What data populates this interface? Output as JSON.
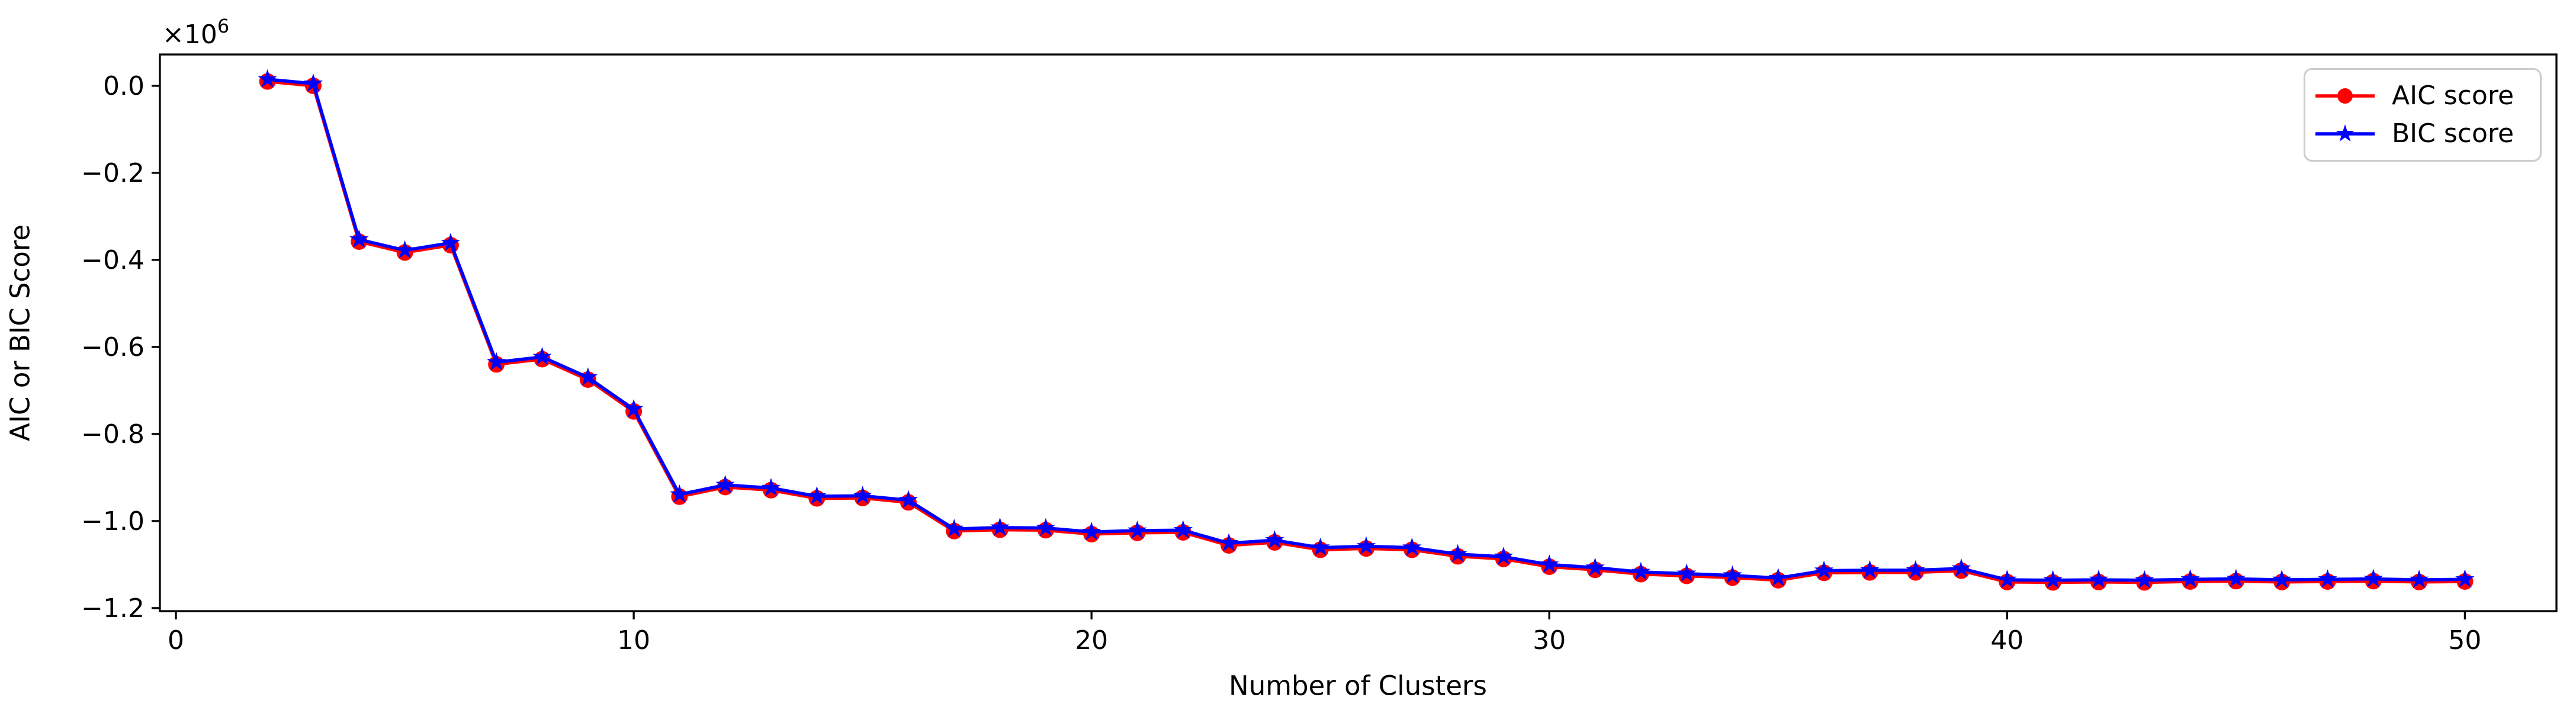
{
  "figure": {
    "background": "#ffffff"
  },
  "chart_data": {
    "type": "line",
    "title": "",
    "xlabel": "Number of Clusters",
    "ylabel": "AIC or BIC Score",
    "y_axis_multiplier": {
      "base": "×10",
      "exponent": "6"
    },
    "grid": false,
    "legend_position": "upper right",
    "xlim": [
      -0.35,
      52.0
    ],
    "ylim": [
      -1207000,
      72000
    ],
    "xticks": [
      0,
      10,
      20,
      30,
      40,
      50
    ],
    "xtick_labels": [
      "0",
      "10",
      "20",
      "30",
      "40",
      "50"
    ],
    "ytick_values": [
      0,
      -200000,
      -400000,
      -600000,
      -800000,
      -1000000,
      -1200000
    ],
    "ytick_labels": [
      "0.0",
      "−0.2",
      "−0.4",
      "−0.6",
      "−0.8",
      "−1.0",
      "−1.2"
    ],
    "x": [
      2,
      3,
      4,
      5,
      6,
      7,
      8,
      9,
      10,
      11,
      12,
      13,
      14,
      15,
      16,
      17,
      18,
      19,
      20,
      21,
      22,
      23,
      24,
      25,
      26,
      27,
      28,
      29,
      30,
      31,
      32,
      33,
      34,
      35,
      36,
      37,
      38,
      39,
      40,
      41,
      42,
      43,
      44,
      45,
      46,
      47,
      48,
      49,
      50
    ],
    "series": [
      {
        "name": "AIC score",
        "color": "#ff0000",
        "marker": "circle",
        "values": [
          10000,
          0,
          -358000,
          -383000,
          -366000,
          -640000,
          -628000,
          -675000,
          -748000,
          -944000,
          -922000,
          -929000,
          -948000,
          -947000,
          -957000,
          -1023000,
          -1020000,
          -1021000,
          -1030000,
          -1027000,
          -1026000,
          -1056000,
          -1049000,
          -1066000,
          -1063000,
          -1066000,
          -1081000,
          -1087000,
          -1105000,
          -1112000,
          -1122000,
          -1126000,
          -1130000,
          -1136000,
          -1119000,
          -1118000,
          -1118000,
          -1114000,
          -1140000,
          -1141000,
          -1140000,
          -1141000,
          -1139000,
          -1138000,
          -1140000,
          -1139000,
          -1138000,
          -1140000,
          -1139000
        ]
      },
      {
        "name": "BIC score",
        "color": "#0000ff",
        "marker": "star",
        "values": [
          15000,
          5000,
          -353000,
          -378000,
          -361000,
          -635000,
          -623000,
          -670000,
          -743000,
          -939000,
          -917000,
          -924000,
          -943000,
          -942000,
          -952000,
          -1018000,
          -1015000,
          -1016000,
          -1025000,
          -1022000,
          -1021000,
          -1051000,
          -1044000,
          -1061000,
          -1058000,
          -1061000,
          -1076000,
          -1082000,
          -1100000,
          -1107000,
          -1117000,
          -1121000,
          -1125000,
          -1131000,
          -1114000,
          -1113000,
          -1113000,
          -1109000,
          -1135000,
          -1136000,
          -1135000,
          -1136000,
          -1134000,
          -1133000,
          -1135000,
          -1134000,
          -1133000,
          -1135000,
          -1134000
        ]
      }
    ]
  }
}
